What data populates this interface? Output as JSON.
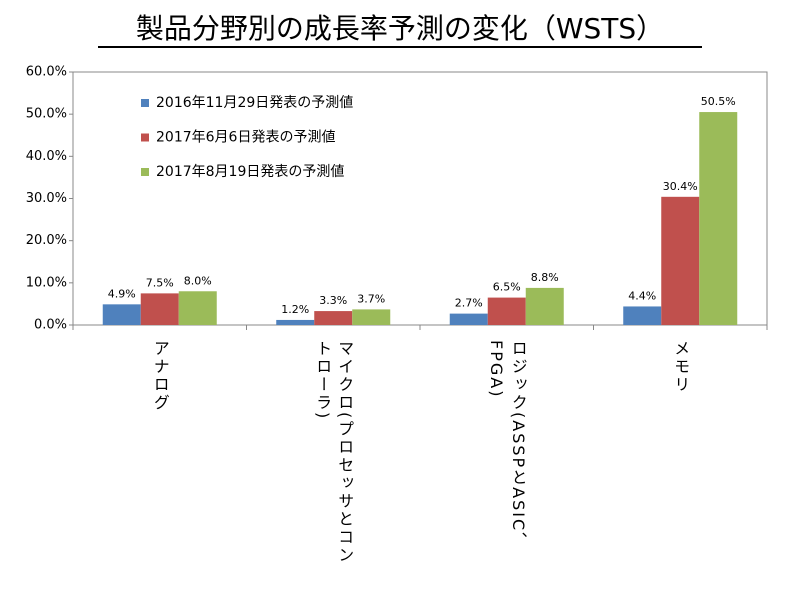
{
  "chart_data": {
    "type": "bar",
    "title": "製品分野別の成長率予測の変化（WSTS）",
    "categories": [
      "アナログ",
      "マイクロ(プロセッサとコントローラ)",
      "ロジック(ASSPとASIC、FPGA)",
      "メモリ"
    ],
    "series": [
      {
        "name": "2016年11月29日発表の予測値",
        "color": "#4f81bd",
        "values": [
          4.9,
          1.2,
          2.7,
          4.4
        ],
        "value_labels": [
          "4.9%",
          "1.2%",
          "2.7%",
          "4.4%"
        ]
      },
      {
        "name": "2017年6月6日発表の予測値",
        "color": "#c0504d",
        "values": [
          7.5,
          3.3,
          6.5,
          30.4
        ],
        "value_labels": [
          "7.5%",
          "3.3%",
          "6.5%",
          "30.4%"
        ]
      },
      {
        "name": "2017年8月19日発表の予測値",
        "color": "#9bbb59",
        "values": [
          8.0,
          3.7,
          8.8,
          50.5
        ],
        "value_labels": [
          "8.0%",
          "3.7%",
          "8.8%",
          "50.5%"
        ]
      }
    ],
    "ylim": [
      0,
      60
    ],
    "yticks": [
      {
        "value": 0,
        "label": "0.0%"
      },
      {
        "value": 10,
        "label": "10.0%"
      },
      {
        "value": 20,
        "label": "20.0%"
      },
      {
        "value": 30,
        "label": "30.0%"
      },
      {
        "value": 40,
        "label": "40.0%"
      },
      {
        "value": 50,
        "label": "50.0%"
      },
      {
        "value": 60,
        "label": "60.0%"
      }
    ],
    "legend": "top-left"
  }
}
